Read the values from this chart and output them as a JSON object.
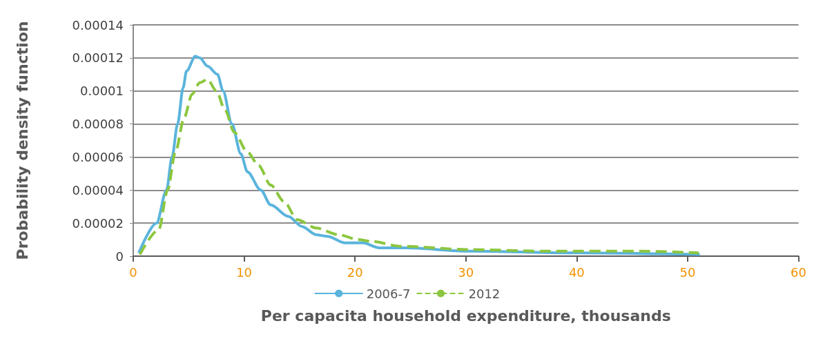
{
  "chart_data": {
    "type": "line",
    "xlabel": "Per capacita household expenditure, thousands",
    "ylabel": "Probability density function",
    "xlim": [
      0,
      60
    ],
    "xticks": [
      0,
      10,
      20,
      30,
      40,
      50,
      60
    ],
    "ylim": [
      0,
      0.00014
    ],
    "yticks": [
      0,
      {
        "value": 2e-05,
        "label": "0.00002"
      },
      {
        "value": 4e-05,
        "label": "0.00004"
      },
      {
        "value": 6e-05,
        "label": "0.00006"
      },
      {
        "value": 8e-05,
        "label": "0.00008"
      },
      0.0001,
      0.00012,
      0.00014
    ],
    "grid": "y",
    "legend": "bottom",
    "marker": "none",
    "series": [
      {
        "name": "2006-7",
        "color": "#5ab4dc",
        "line_style": "solid",
        "x": [
          0.5,
          2.1,
          3.0,
          3.5,
          4.0,
          4.5,
          4.8,
          5.6,
          6.0,
          6.7,
          7.6,
          8.1,
          8.9,
          9.7,
          10.3,
          11.5,
          12.4,
          14.0,
          15.2,
          16.5,
          17.5,
          19.1,
          20.7,
          22.2,
          24.6,
          30.2,
          40,
          51.1
        ],
        "values": [
          2e-06,
          2e-05,
          4e-05,
          6e-05,
          8e-05,
          0.000102,
          0.000112,
          0.000121,
          0.00012,
          0.000115,
          0.00011,
          0.0001,
          8e-05,
          6.2e-05,
          5.1e-05,
          4e-05,
          3.1e-05,
          2.4e-05,
          1.8e-05,
          1.3e-05,
          1.2e-05,
          8e-06,
          8e-06,
          5e-06,
          5e-06,
          3e-06,
          2e-06,
          1e-06
        ]
      },
      {
        "name": "2012",
        "color": "#8cc63f",
        "line_style": "dashed",
        "x": [
          0.6,
          2.3,
          3.1,
          3.8,
          4.6,
          5.3,
          6.0,
          6.7,
          7.5,
          8.3,
          9.1,
          10.3,
          11.3,
          12.4,
          13.6,
          14.8,
          16.5,
          18.5,
          20.3,
          21.4,
          24.2,
          30.2,
          37.3,
          45.7,
          51
        ],
        "values": [
          1e-06,
          1.6e-05,
          4e-05,
          6.3e-05,
          8.4e-05,
          9.8e-05,
          0.000105,
          0.000107,
          0.0001,
          8.8e-05,
          7.5e-05,
          6.3e-05,
          5.5e-05,
          4.3e-05,
          3.3e-05,
          2.2e-05,
          1.7e-05,
          1.3e-05,
          1e-05,
          9e-06,
          6e-06,
          4e-06,
          3e-06,
          3e-06,
          2e-06
        ]
      }
    ]
  }
}
